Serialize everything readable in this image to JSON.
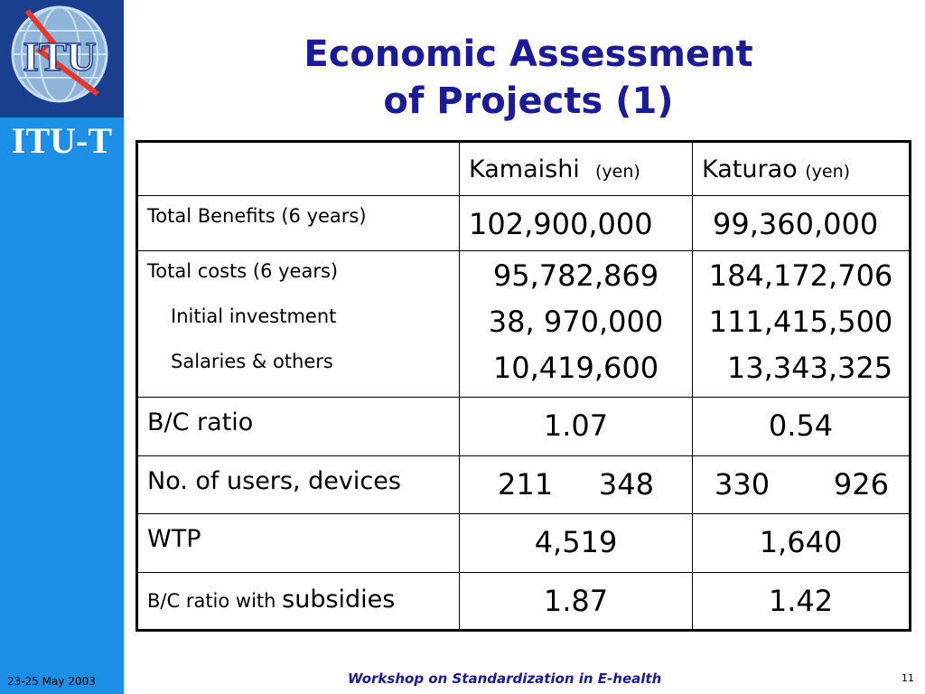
{
  "brand": {
    "logo_text": "ITU",
    "label": "ITU-T",
    "sidebar_color": "#1e8fe6",
    "logo_bg_color": "#1a3f8f"
  },
  "date": "23-25 May 2003",
  "title": {
    "line1": "Economic Assessment",
    "line2": "of Projects (1)"
  },
  "table": {
    "headers": [
      {
        "name": "",
        "unit": ""
      },
      {
        "name": "Kamaishi",
        "unit": "(yen)"
      },
      {
        "name": "Katurao",
        "unit": "(yen)"
      }
    ],
    "rows": {
      "total_benefits": {
        "label": "Total Benefits (6 years)",
        "kamaishi": "102,900,000",
        "katurao": "99,360,000"
      },
      "total_costs": {
        "label": "Total costs (6 years)",
        "sub1": "Initial investment",
        "sub2": "Salaries & others",
        "kamaishi": [
          "95,782,869",
          "38, 970,000",
          "10,419,600"
        ],
        "katurao": [
          "184,172,706",
          "111,415,500",
          "13,343,325"
        ]
      },
      "bc_ratio": {
        "label": "B/C ratio",
        "kamaishi": "1.07",
        "katurao": "0.54"
      },
      "users": {
        "label": "No. of users, devices",
        "kamaishi": [
          "211",
          "348"
        ],
        "katurao": [
          "330",
          "926"
        ]
      },
      "wtp": {
        "label": "WTP",
        "kamaishi": "4,519",
        "katurao": "1,640"
      },
      "bc_subsidies": {
        "label_a": "B/C ratio with",
        "label_b": "subsidies",
        "kamaishi": "1.87",
        "katurao": "1.42"
      }
    }
  },
  "footer": "Workshop on Standardization in E-health",
  "page_number": "11"
}
